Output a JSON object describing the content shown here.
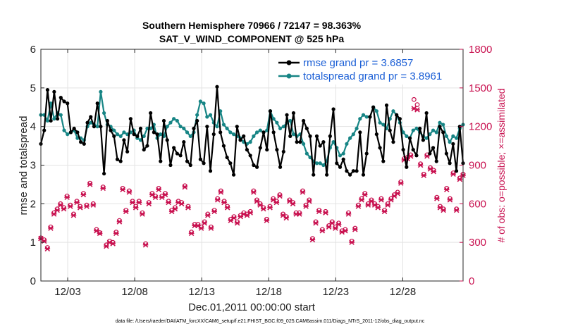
{
  "chart_data": {
    "type": "line",
    "title_line1": "Southern Hemisphere 70966 / 72147 = 98.363%",
    "title_line2": "SAT_V_WIND_COMPONENT @ 525 hPa",
    "xlabel": "Dec.01,2011 00:00:00 start",
    "ylabel": "rmse and totalspread",
    "ylabel_right": "# of obs: o=possible; ×=assimilated",
    "footer": "data file: /Users/raeder/DAI/ATM_forcXX/CAM6_setup/f.e21.FHIST_BGC.f09_025.CAM6assim.011/Diags_NTrS_2011-12/obs_diag_output.nc",
    "xlim": [
      1,
      32.5
    ],
    "ylim": [
      0,
      6
    ],
    "ylim_right": [
      0,
      1800
    ],
    "x_ticks": [
      3,
      8,
      13,
      18,
      23,
      28
    ],
    "x_tick_labels": [
      "12/03",
      "12/08",
      "12/13",
      "12/18",
      "12/23",
      "12/28"
    ],
    "y_ticks": [
      0,
      1,
      2,
      3,
      4,
      5,
      6
    ],
    "y_tick_labels": [
      "0",
      "1",
      "2",
      "3",
      "4",
      "5",
      "6"
    ],
    "y_right_ticks": [
      0,
      300,
      600,
      900,
      1200,
      1500,
      1800
    ],
    "y_right_tick_labels": [
      "0",
      "300",
      "600",
      "900",
      "1200",
      "1500",
      "1800"
    ],
    "grid": true,
    "legend_location": "top-right",
    "series": [
      {
        "name": "rmse",
        "legend_label": "rmse grand pr = 3.6857",
        "color": "#000000",
        "marker": "dot",
        "axis": "left",
        "values": [
          3.55,
          3.9,
          4.95,
          4.15,
          4.9,
          4.2,
          4.75,
          4.65,
          4.6,
          3.85,
          3.95,
          3.85,
          3.6,
          3.55,
          4.1,
          4.25,
          4.0,
          4.6,
          4.0,
          2.78,
          4.15,
          3.9,
          3.75,
          3.15,
          3.1,
          3.65,
          3.35,
          4.2,
          3.8,
          3.75,
          3.95,
          3.4,
          3.5,
          4.35,
          3.85,
          3.8,
          3.1,
          4.15,
          3.65,
          3.0,
          3.45,
          3.3,
          3.25,
          3.6,
          3.1,
          3.0,
          3.95,
          4.15,
          3.15,
          3.05,
          4.0,
          2.85,
          3.8,
          5.03,
          3.85,
          3.5,
          3.2,
          3.05,
          2.75,
          4.0,
          3.65,
          3.75,
          3.4,
          3.25,
          3.0,
          2.95,
          3.45,
          3.85,
          3.4,
          4.4,
          3.85,
          3.4,
          2.95,
          3.35,
          4.3,
          3.75,
          4.35,
          3.6,
          3.6,
          4.15,
          3.95,
          3.75,
          2.75,
          3.75,
          3.5,
          3.6,
          2.75,
          3.75,
          4.45,
          3.05,
          2.95,
          3.15,
          2.85,
          2.75,
          2.85,
          2.85,
          3.85,
          2.75,
          3.3,
          4.25,
          4.5,
          3.8,
          3.45,
          3.1,
          4.55,
          3.9,
          3.6,
          4.3,
          4.2,
          3.4,
          2.95,
          3.7,
          3.4,
          3.25,
          3.95,
          3.65,
          4.35,
          3.3,
          3.45,
          3.1,
          4.0,
          3.85,
          3.3,
          3.05,
          3.55,
          2.85,
          4.0,
          3.05
        ]
      },
      {
        "name": "totalspread",
        "legend_label": "totalspread grand pr = 3.8961",
        "color": "#178585",
        "marker": "dot",
        "axis": "left",
        "values": [
          4.3,
          4.3,
          4.15,
          4.6,
          4.2,
          4.35,
          4.3,
          3.9,
          3.8,
          3.85,
          3.9,
          3.7,
          3.7,
          3.65,
          4.0,
          4.1,
          4.05,
          4.0,
          4.9,
          4.35,
          4.05,
          4.0,
          3.9,
          3.8,
          3.75,
          3.85,
          3.8,
          3.85,
          3.9,
          3.7,
          3.65,
          3.75,
          3.95,
          3.95,
          4.05,
          3.7,
          3.8,
          3.75,
          4.0,
          4.1,
          4.2,
          4.15,
          4.0,
          3.95,
          3.85,
          3.75,
          3.85,
          4.3,
          4.65,
          4.6,
          4.25,
          4.3,
          4.1,
          4.0,
          4.4,
          4.05,
          3.95,
          3.85,
          3.8,
          3.75,
          3.7,
          3.6,
          3.55,
          3.6,
          3.75,
          3.85,
          3.9,
          3.85,
          3.9,
          4.4,
          4.2,
          4.1,
          3.95,
          4.0,
          4.1,
          4.15,
          3.8,
          3.75,
          3.8,
          3.55,
          3.3,
          3.2,
          3.1,
          3.05,
          3.05,
          3.0,
          3.1,
          3.45,
          3.6,
          3.45,
          3.25,
          3.3,
          3.55,
          3.7,
          3.8,
          3.95,
          4.2,
          4.3,
          4.25,
          4.25,
          4.5,
          4.4,
          4.1,
          4.05,
          3.95,
          4.2,
          4.4,
          4.3,
          4.1,
          3.85,
          3.75,
          3.7,
          3.9,
          3.95,
          3.85,
          3.75,
          3.7,
          3.8,
          3.9,
          3.85,
          4.1,
          4.05,
          3.75,
          3.6,
          3.75,
          3.7,
          3.95,
          4.05
        ]
      },
      {
        "name": "possible",
        "legend_label": "o=possible",
        "color": "#c8104f",
        "marker": "circle",
        "axis": "right",
        "values": [
          335,
          320,
          260,
          420,
          530,
          560,
          600,
          570,
          660,
          590,
          520,
          620,
          580,
          680,
          590,
          760,
          600,
          400,
          375,
          730,
          280,
          310,
          300,
          380,
          470,
          720,
          550,
          700,
          620,
          580,
          620,
          530,
          290,
          610,
          680,
          660,
          720,
          660,
          680,
          620,
          550,
          570,
          620,
          610,
          740,
          580,
          380,
          440,
          440,
          420,
          460,
          520,
          420,
          550,
          640,
          700,
          620,
          580,
          480,
          500,
          460,
          510,
          530,
          520,
          540,
          700,
          630,
          600,
          570,
          480,
          580,
          640,
          620,
          670,
          520,
          500,
          630,
          610,
          530,
          530,
          700,
          590,
          630,
          330,
          460,
          550,
          400,
          540,
          430,
          460,
          420,
          450,
          390,
          400,
          530,
          310,
          410,
          590,
          640,
          680,
          600,
          630,
          600,
          580,
          640,
          550,
          600,
          640,
          670,
          690,
          770,
          950,
          960,
          980,
          1410,
          1370,
          910,
          830,
          980,
          880,
          860,
          650,
          580,
          560,
          720,
          640,
          840,
          560,
          800,
          830
        ]
      },
      {
        "name": "assimilated",
        "legend_label": "×=assimilated",
        "color": "#c8104f",
        "marker": "x",
        "axis": "right",
        "values": [
          330,
          310,
          250,
          410,
          520,
          550,
          590,
          560,
          650,
          580,
          510,
          610,
          570,
          670,
          580,
          750,
          590,
          390,
          370,
          720,
          270,
          300,
          290,
          370,
          460,
          710,
          540,
          690,
          610,
          570,
          610,
          520,
          280,
          600,
          670,
          650,
          710,
          650,
          670,
          610,
          540,
          560,
          610,
          600,
          730,
          570,
          370,
          430,
          430,
          410,
          450,
          510,
          410,
          540,
          630,
          690,
          610,
          570,
          470,
          490,
          450,
          500,
          520,
          510,
          530,
          690,
          620,
          590,
          560,
          470,
          570,
          630,
          610,
          660,
          510,
          490,
          620,
          600,
          520,
          520,
          690,
          580,
          620,
          320,
          450,
          540,
          390,
          530,
          420,
          450,
          410,
          440,
          380,
          390,
          520,
          300,
          400,
          580,
          630,
          670,
          590,
          620,
          590,
          570,
          630,
          540,
          590,
          630,
          660,
          680,
          760,
          940,
          950,
          970,
          1340,
          1330,
          900,
          820,
          970,
          870,
          850,
          640,
          570,
          550,
          710,
          630,
          830,
          550,
          790,
          820
        ]
      }
    ]
  }
}
